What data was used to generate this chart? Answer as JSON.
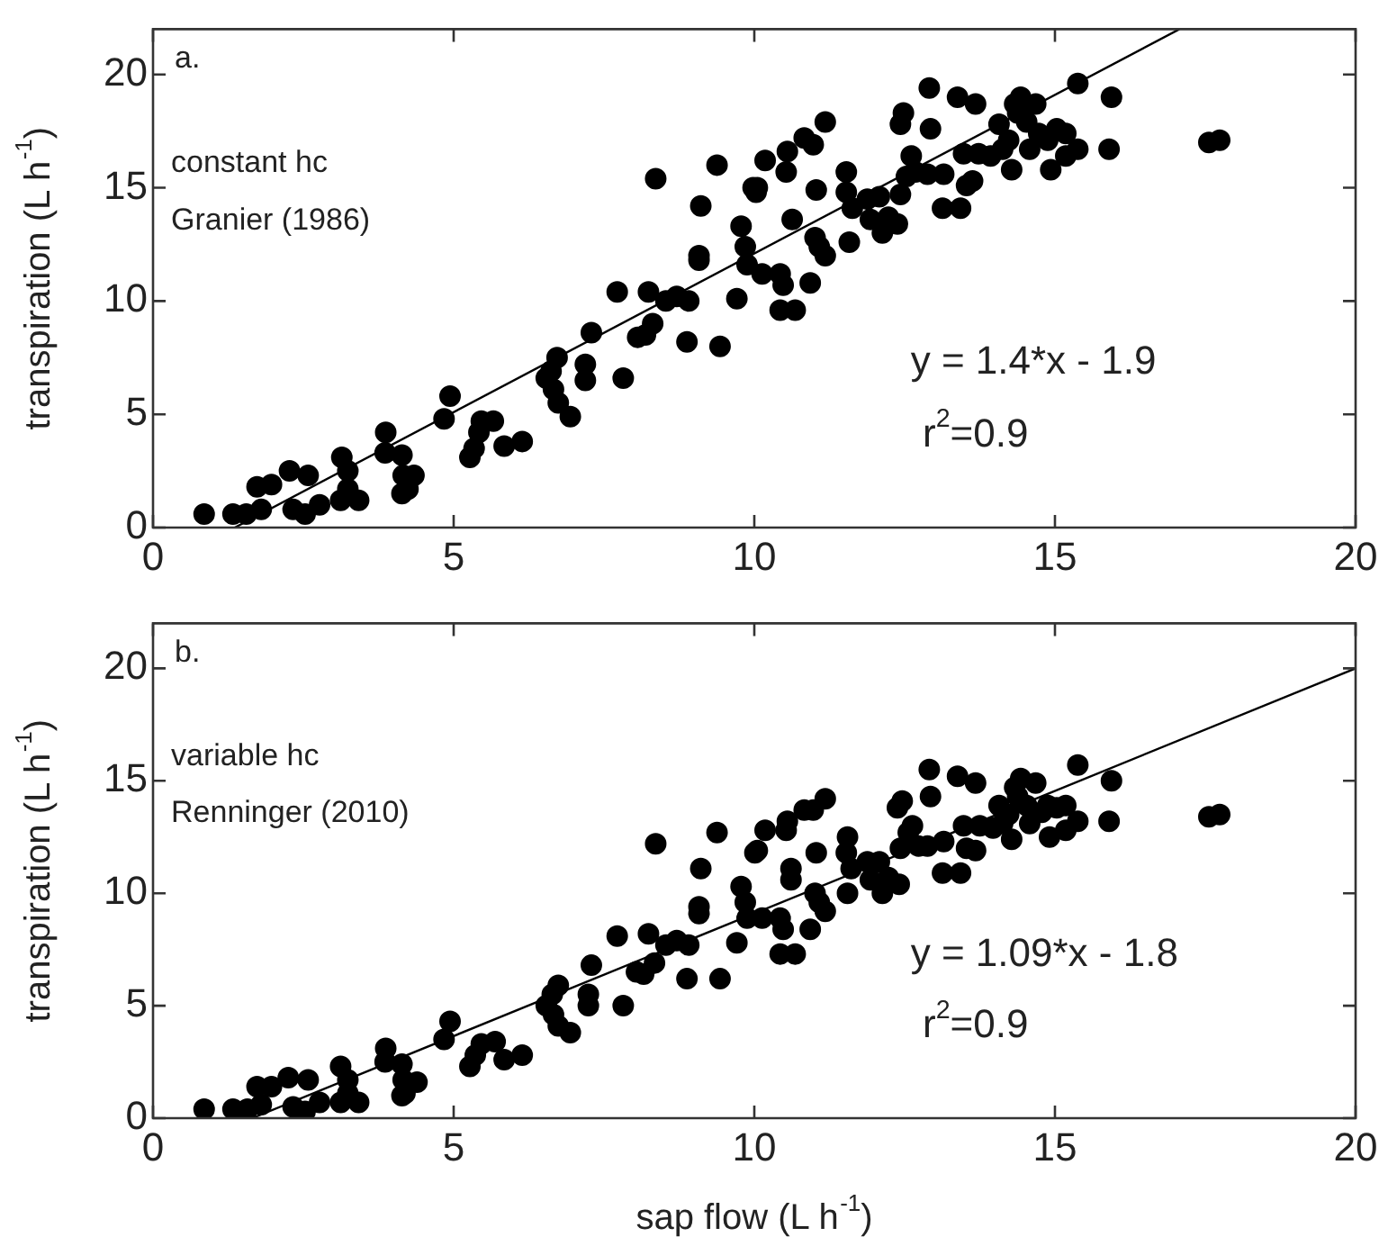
{
  "chart_data": [
    {
      "type": "scatter",
      "ylabel": "transpiration (L h$^{-1}$)",
      "annotations": [
        "a.",
        "constant hc",
        "Granier (1986)",
        "y = 1.4*x - 1.9",
        "r$^{2}$=0.9"
      ],
      "xlim": [
        0,
        20
      ],
      "ylim": [
        0,
        22
      ],
      "xticks": [
        0,
        5,
        10,
        15,
        20
      ],
      "yticks": [
        0,
        5,
        10,
        15,
        20
      ],
      "series": [
        {
          "marker": "circle",
          "color": "#000000",
          "x": [
            0.85,
            1.33,
            1.55,
            1.8,
            1.73,
            1.97,
            2.27,
            2.58,
            2.33,
            2.53,
            2.77,
            3.14,
            3.24,
            3.12,
            3.24,
            3.42,
            3.87,
            3.86,
            4.14,
            4.16,
            4.34,
            4.24,
            4.14,
            4.84,
            4.94,
            5.27,
            5.34,
            5.42,
            5.46,
            5.66,
            5.84,
            6.14,
            6.54,
            6.62,
            6.72,
            6.66,
            6.74,
            6.94,
            7.19,
            7.19,
            7.29,
            7.72,
            7.82,
            8.06,
            8.19,
            8.24,
            8.31,
            8.36,
            8.53,
            8.71,
            8.91,
            8.88,
            9.08,
            9.08,
            9.11,
            9.38,
            9.43,
            9.71,
            9.78,
            9.85,
            9.88,
            9.98,
            10.13,
            10.18,
            10.05,
            10.03,
            10.43,
            10.48,
            10.43,
            10.68,
            10.53,
            10.55,
            10.63,
            10.93,
            10.83,
            10.98,
            11.18,
            11.03,
            11.01,
            11.08,
            11.18,
            11.53,
            11.53,
            11.58,
            11.63,
            11.88,
            11.93,
            12.08,
            12.13,
            12.23,
            12.38,
            12.43,
            12.48,
            12.43,
            12.53,
            12.61,
            12.68,
            12.88,
            12.91,
            12.93,
            13.13,
            13.15,
            13.38,
            13.43,
            13.48,
            13.53,
            13.63,
            13.68,
            13.73,
            13.93,
            14.07,
            14.13,
            14.23,
            14.28,
            14.33,
            14.38,
            14.43,
            14.53,
            14.58,
            14.68,
            14.73,
            14.88,
            14.93,
            15.03,
            15.18,
            15.18,
            15.38,
            15.38,
            15.9,
            15.94,
            17.56,
            17.74
          ],
          "values": [
            0.6,
            0.6,
            0.6,
            0.8,
            1.8,
            1.9,
            2.5,
            2.3,
            0.8,
            0.6,
            1,
            3.1,
            2.5,
            1.2,
            1.7,
            1.2,
            4.2,
            3.3,
            3.2,
            2.3,
            2.3,
            1.7,
            1.5,
            4.8,
            5.8,
            3.1,
            3.5,
            4.2,
            4.7,
            4.7,
            3.6,
            3.8,
            6.6,
            6.9,
            7.5,
            6.1,
            5.5,
            4.9,
            7.2,
            6.5,
            8.6,
            10.4,
            6.6,
            8.4,
            8.5,
            10.4,
            9,
            15.4,
            10,
            10.2,
            10,
            8.2,
            11.8,
            12,
            14.2,
            16,
            8,
            10.1,
            13.3,
            12.4,
            11.6,
            15,
            11.2,
            16.2,
            15,
            14.8,
            11.2,
            10.7,
            9.6,
            9.6,
            15.7,
            16.6,
            13.6,
            10.8,
            17.2,
            16.9,
            17.9,
            14.9,
            12.8,
            12.4,
            12,
            15.7,
            14.8,
            12.6,
            14.1,
            14.5,
            13.6,
            14.6,
            13,
            13.7,
            13.4,
            17.8,
            18.3,
            14.7,
            15.5,
            16.4,
            15.7,
            15.6,
            19.4,
            17.6,
            14.1,
            15.6,
            19,
            14.1,
            16.5,
            15.1,
            15.3,
            18.7,
            16.5,
            16.4,
            17.8,
            16.7,
            17.1,
            15.8,
            18.7,
            18.3,
            19,
            17.9,
            16.7,
            18.7,
            17.4,
            17.1,
            15.8,
            17.6,
            17.4,
            16.4,
            16.7,
            19.6,
            16.7,
            19,
            17,
            17.1
          ]
        },
        {
          "type": "line",
          "marker": "none",
          "color": "#000000",
          "x": [
            1.36,
            17.07
          ],
          "values": [
            0,
            22
          ]
        }
      ]
    },
    {
      "type": "scatter",
      "xlabel": "sap flow (L h$^{-1}$)",
      "ylabel": "transpiration (L h$^{-1}$)",
      "annotations": [
        "b.",
        "variable hc",
        "Renninger (2010)",
        "y = 1.09*x - 1.8",
        "r$^{2}$=0.9"
      ],
      "xlim": [
        0,
        20
      ],
      "ylim": [
        0,
        22
      ],
      "xticks": [
        0,
        5,
        10,
        15,
        20
      ],
      "yticks": [
        0,
        5,
        10,
        15,
        20
      ],
      "series": [
        {
          "marker": "circle",
          "color": "#000000",
          "x": [
            0.85,
            1.33,
            1.57,
            1.8,
            1.73,
            1.97,
            2.25,
            2.58,
            2.33,
            2.53,
            2.77,
            3.12,
            3.24,
            3.12,
            3.24,
            3.42,
            3.87,
            3.86,
            4.14,
            4.16,
            4.39,
            4.19,
            4.14,
            4.84,
            4.94,
            5.27,
            5.36,
            5.46,
            5.69,
            5.84,
            6.14,
            6.54,
            6.64,
            6.74,
            6.66,
            6.74,
            6.94,
            7.24,
            7.24,
            7.29,
            7.72,
            7.82,
            8.04,
            8.16,
            8.24,
            8.34,
            8.36,
            8.53,
            8.71,
            8.91,
            8.88,
            9.08,
            9.08,
            9.11,
            9.38,
            9.43,
            9.71,
            9.78,
            9.85,
            9.88,
            10.01,
            10.18,
            10.05,
            10.13,
            10.43,
            10.48,
            10.43,
            10.68,
            10.53,
            10.55,
            10.61,
            10.61,
            10.93,
            10.83,
            10.98,
            11.18,
            11.03,
            11.01,
            11.08,
            11.18,
            11.55,
            11.53,
            11.55,
            11.61,
            11.88,
            11.93,
            12.08,
            12.13,
            12.23,
            12.41,
            12.38,
            12.46,
            12.43,
            12.56,
            12.63,
            12.73,
            12.88,
            12.91,
            12.93,
            13.13,
            13.15,
            13.38,
            13.43,
            13.48,
            13.53,
            13.68,
            13.68,
            13.75,
            13.97,
            14.07,
            14.13,
            14.23,
            14.28,
            14.33,
            14.38,
            14.43,
            14.53,
            14.58,
            14.68,
            14.78,
            14.88,
            14.91,
            15.03,
            15.18,
            15.18,
            15.38,
            15.38,
            15.9,
            15.94,
            17.56,
            17.74
          ],
          "values": [
            0.4,
            0.4,
            0.4,
            0.6,
            1.4,
            1.4,
            1.8,
            1.7,
            0.5,
            0.3,
            0.7,
            2.3,
            1.7,
            0.7,
            1.1,
            0.7,
            3.1,
            2.5,
            2.4,
            1.7,
            1.6,
            1.1,
            1,
            3.5,
            4.3,
            2.3,
            2.8,
            3.3,
            3.4,
            2.6,
            2.8,
            5,
            5.5,
            5.9,
            4.6,
            4.1,
            3.8,
            5.5,
            5,
            6.8,
            8.1,
            5,
            6.5,
            6.4,
            8.2,
            6.9,
            12.2,
            7.7,
            7.9,
            7.7,
            6.2,
            9.1,
            9.4,
            11.1,
            12.7,
            6.2,
            7.8,
            10.3,
            9.6,
            8.9,
            11.8,
            12.8,
            11.9,
            8.9,
            8.9,
            8.4,
            7.3,
            7.3,
            12.8,
            13.2,
            11.1,
            10.6,
            8.4,
            13.7,
            13.7,
            14.2,
            11.8,
            10,
            9.6,
            9.2,
            12.5,
            11.8,
            10,
            11.1,
            11.4,
            10.6,
            11.4,
            10,
            10.7,
            10.4,
            13.8,
            14.1,
            12,
            12.7,
            13,
            12.1,
            12.1,
            15.5,
            14.3,
            10.9,
            12.3,
            15.2,
            10.9,
            13,
            12,
            11.9,
            14.9,
            13,
            12.9,
            13.9,
            13.1,
            13.5,
            12.4,
            14.7,
            14.3,
            15.1,
            13.9,
            13.1,
            14.9,
            13.6,
            13.9,
            12.5,
            13.8,
            12.8,
            13.9,
            13.2,
            15.7,
            13.2,
            15,
            13.4,
            13.5
          ]
        },
        {
          "type": "line",
          "marker": "none",
          "color": "#000000",
          "x": [
            1.65,
            20
          ],
          "values": [
            0,
            20
          ]
        }
      ]
    }
  ]
}
